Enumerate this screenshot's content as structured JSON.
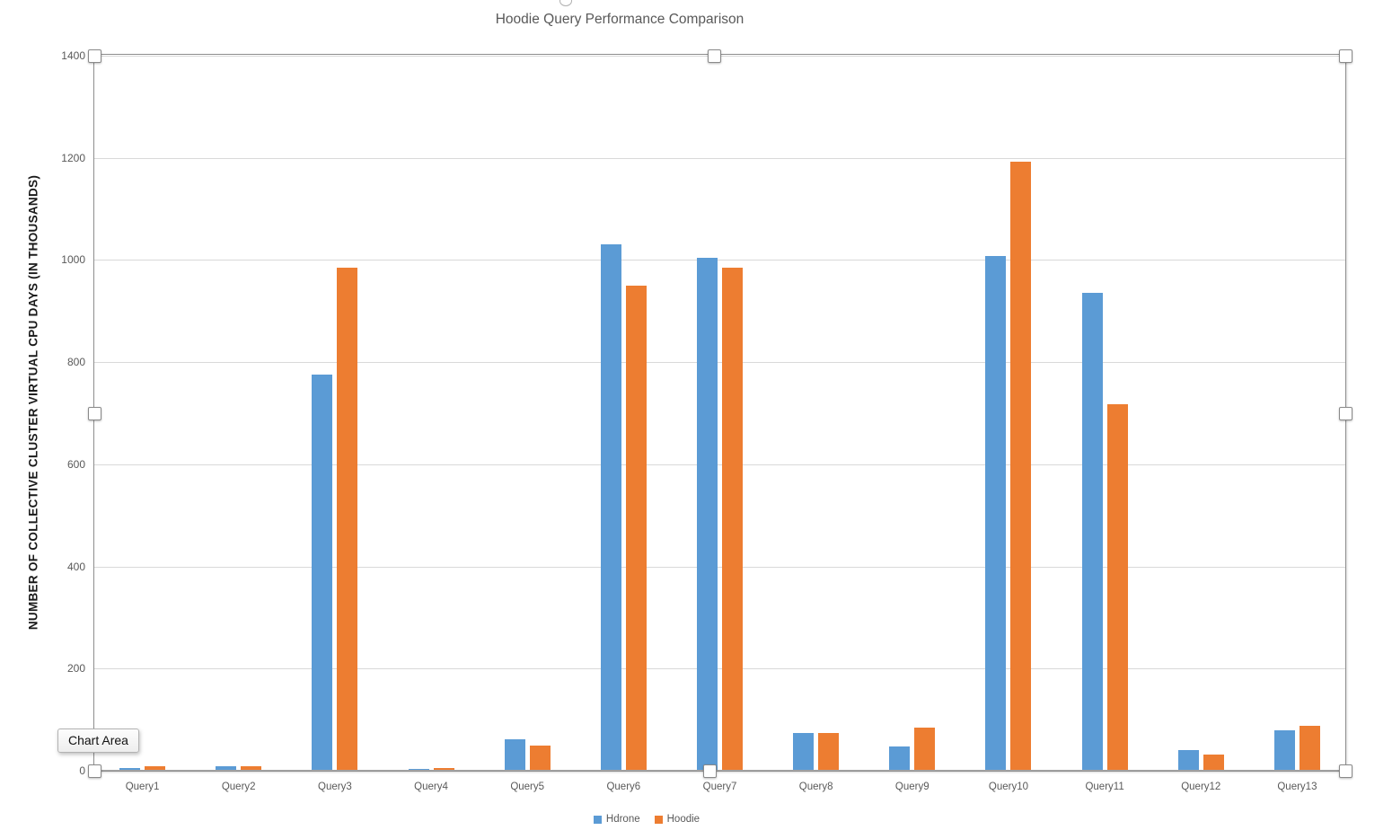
{
  "chart": {
    "tooltip_label": "Chart Area"
  },
  "chart_data": {
    "type": "bar",
    "title": "Hoodie Query Performance Comparison",
    "xlabel": "",
    "ylabel": "NUMBER OF COLLECTIVE CLUSTER VIRTUAL CPU DAYS (IN THOUSANDS)",
    "ylim": [
      0,
      1400
    ],
    "yticks": [
      0,
      200,
      400,
      600,
      800,
      1000,
      1200,
      1400
    ],
    "grid": true,
    "legend_position": "bottom",
    "categories": [
      "Query1",
      "Query2",
      "Query3",
      "Query4",
      "Query5",
      "Query6",
      "Query7",
      "Query8",
      "Query9",
      "Query10",
      "Query11",
      "Query12",
      "Query13"
    ],
    "series": [
      {
        "name": "Hdrone",
        "color": "#5B9BD5",
        "values": [
          5,
          8,
          775,
          4,
          62,
          1030,
          1005,
          73,
          48,
          1008,
          935,
          40,
          80
        ]
      },
      {
        "name": "Hoodie",
        "color": "#ED7D31",
        "values": [
          8,
          8,
          985,
          5,
          50,
          950,
          985,
          73,
          85,
          1192,
          718,
          32,
          88
        ]
      }
    ]
  },
  "colors": {
    "gridline": "#D9D9D9",
    "axis_line": "#A6A6A6",
    "tick_text": "#595959",
    "title_text": "#595959",
    "selection_border": "#8F8F8F"
  }
}
